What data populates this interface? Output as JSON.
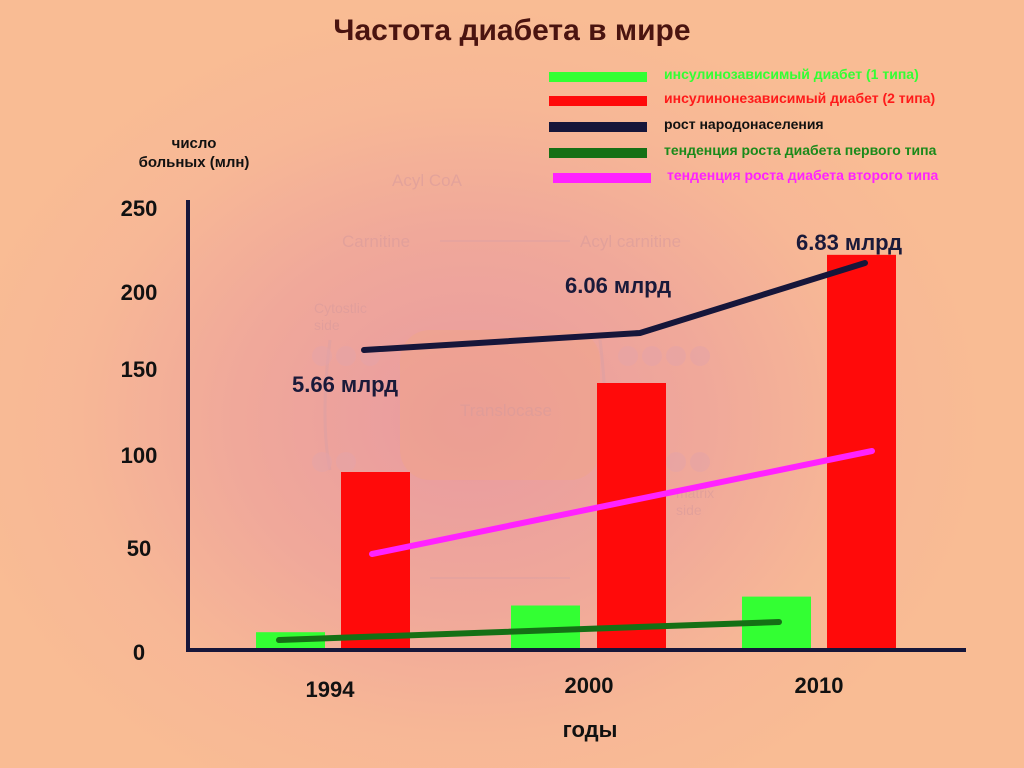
{
  "chart_data": {
    "type": "bar",
    "title": "Частота диабета в мире",
    "ylabel_line1": "число",
    "ylabel_line2": "больных (млн)",
    "xlabel": "годы",
    "ylim": [
      0,
      250
    ],
    "yticks": [
      0,
      50,
      100,
      150,
      200,
      250
    ],
    "categories": [
      "1994",
      "2000",
      "2010"
    ],
    "series": [
      {
        "name": "инсулинозависимый диабет (1 типа)",
        "color": "#33ff33",
        "values": [
          10,
          25,
          30
        ]
      },
      {
        "name": "инсулинонезависимый диабет (2 типа)",
        "color": "#ff0a0a",
        "values": [
          100,
          150,
          222
        ]
      }
    ],
    "trend_lines": [
      {
        "name": "рост народонаселения",
        "color": "#16163a"
      },
      {
        "name": "тенденция роста диабета первого типа",
        "color": "#157015"
      },
      {
        "name": "тенденция роста диабета второго типа",
        "color": "#ff22ff"
      }
    ],
    "population_labels": [
      "5.66 млрд",
      "6.06 млрд",
      "6.83 млрд"
    ],
    "legend_text_colors": [
      "#33ff33",
      "#ff1a1a",
      "#111111",
      "#1a8a1a",
      "#ff22ff"
    ],
    "legend_placement": "top-right"
  },
  "background_labels": {
    "acyl_coa": "Acyl CoA",
    "carnitine": "Carnitine",
    "acyl_carnitine": "Acyl carnitine",
    "cytosolic_side_1": "Cytostlic",
    "cytosolic_side_2": "side",
    "translocase": "Translocase",
    "matrix_1": "matrix",
    "matrix_2": "side"
  }
}
